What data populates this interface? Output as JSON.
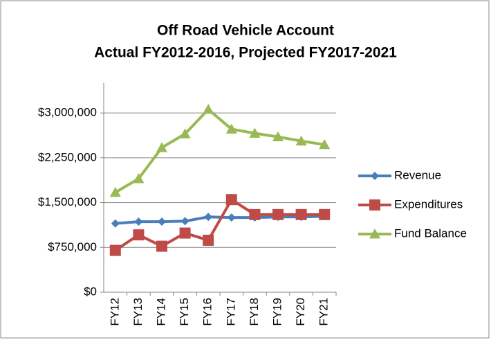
{
  "chart_data": {
    "type": "line",
    "title": [
      "Off Road Vehicle Account",
      "Actual FY2012-2016, Projected FY2017-2021"
    ],
    "categories": [
      "FY12",
      "FY13",
      "FY14",
      "FY15",
      "FY16",
      "FY17",
      "FY18",
      "FY19",
      "FY20",
      "FY21"
    ],
    "series": [
      {
        "name": "Revenue",
        "color": "#4a7ebb",
        "marker": "diamond",
        "values": [
          1150000,
          1180000,
          1180000,
          1190000,
          1260000,
          1250000,
          1250000,
          1260000,
          1260000,
          1270000
        ]
      },
      {
        "name": "Expenditures",
        "color": "#be4b48",
        "marker": "square",
        "values": [
          700000,
          960000,
          770000,
          990000,
          870000,
          1550000,
          1300000,
          1300000,
          1300000,
          1300000
        ]
      },
      {
        "name": "Fund Balance",
        "color": "#98b954",
        "marker": "triangle",
        "values": [
          1670000,
          1900000,
          2420000,
          2650000,
          3060000,
          2730000,
          2660000,
          2600000,
          2530000,
          2470000
        ]
      }
    ],
    "ylim": [
      0,
      3500000
    ],
    "yticks": [
      {
        "value": 0,
        "label": "$0"
      },
      {
        "value": 750000,
        "label": "$750,000"
      },
      {
        "value": 1500000,
        "label": "$1,500,000"
      },
      {
        "value": 2250000,
        "label": "$2,250,000"
      },
      {
        "value": 3000000,
        "label": "$3,000,000"
      }
    ],
    "grid": true,
    "legend": "right"
  }
}
